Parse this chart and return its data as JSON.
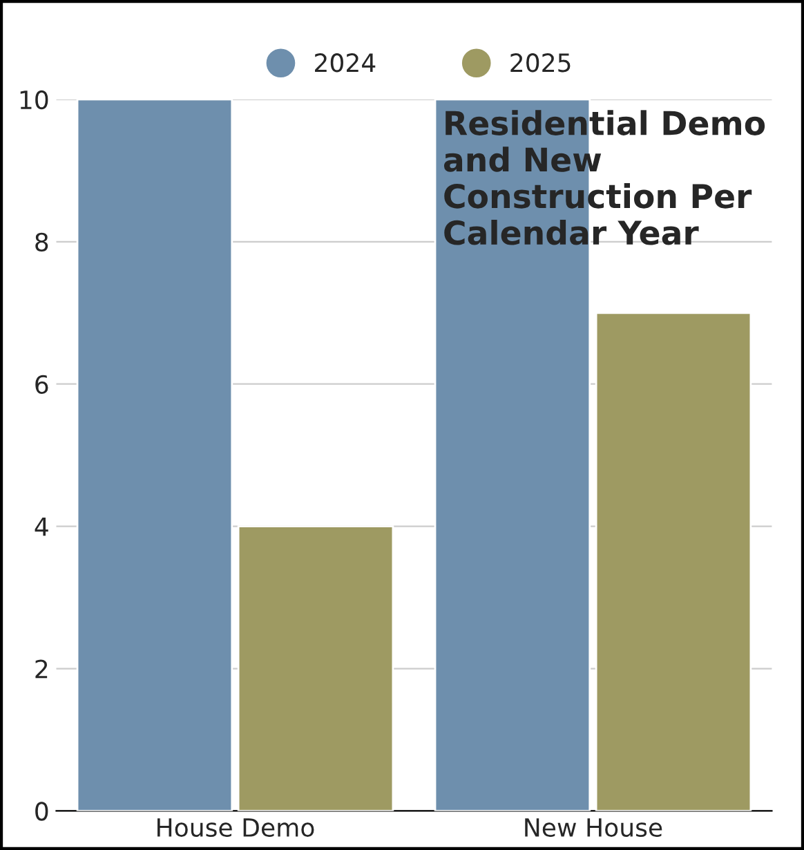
{
  "chart_data": {
    "type": "bar",
    "title": "Residential Demo and New Construction Per Calendar Year",
    "categories": [
      "House Demo",
      "New House"
    ],
    "series": [
      {
        "name": "2024",
        "color": "#6e8fad",
        "values": [
          10,
          10
        ]
      },
      {
        "name": "2025",
        "color": "#9e9a62",
        "values": [
          4,
          7
        ]
      }
    ],
    "ylim": [
      0,
      10
    ],
    "yticks": [
      0,
      2,
      4,
      6,
      8,
      10
    ],
    "grid": "y",
    "legend": "top"
  }
}
